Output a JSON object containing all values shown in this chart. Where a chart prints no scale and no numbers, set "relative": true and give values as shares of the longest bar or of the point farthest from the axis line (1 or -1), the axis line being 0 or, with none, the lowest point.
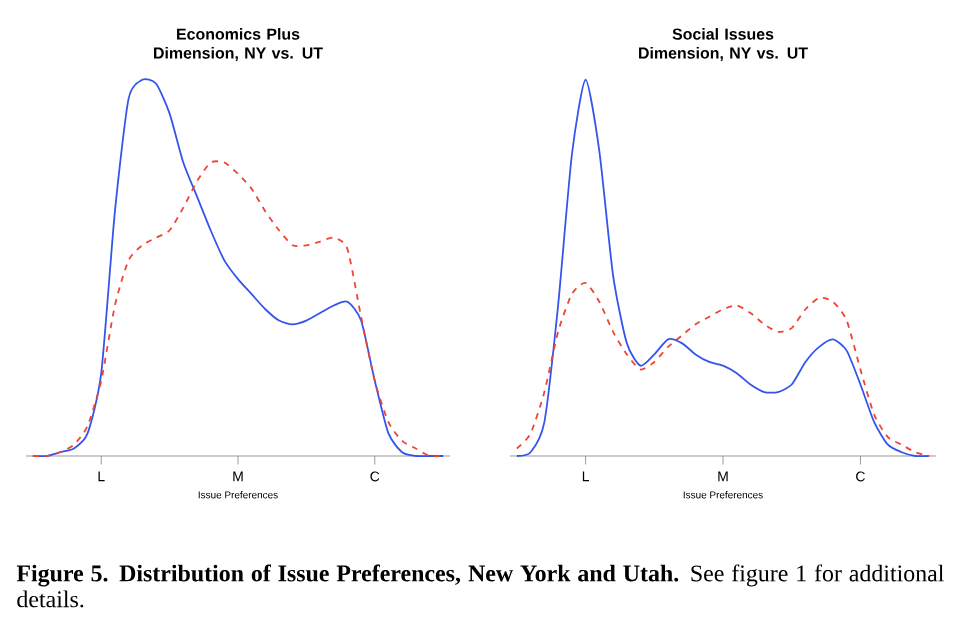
{
  "chart_data": [
    {
      "type": "line",
      "title": "Economics Plus Dimension, NY vs. UT",
      "xlabel": "Issue Preferences",
      "relative": true,
      "categories": [
        null,
        null,
        null,
        null,
        null,
        "L",
        null,
        null,
        null,
        null,
        null,
        null,
        null,
        null,
        null,
        "M",
        null,
        null,
        null,
        null,
        null,
        null,
        null,
        null,
        null,
        "C",
        null,
        null,
        null,
        null,
        null
      ],
      "series": [
        {
          "color": "#3355ee",
          "line_style": "solid",
          "values": [
            0,
            0,
            0.01,
            0.02,
            0.06,
            0.22,
            0.65,
            0.95,
            1.0,
            0.99,
            0.91,
            0.78,
            0.69,
            0.6,
            0.52,
            0.47,
            0.43,
            0.39,
            0.36,
            0.35,
            0.36,
            0.38,
            0.4,
            0.41,
            0.36,
            0.2,
            0.06,
            0.01,
            0,
            0,
            0
          ]
        },
        {
          "color": "#ee4433",
          "line_style": "dashed",
          "values": [
            0,
            0,
            0.01,
            0.03,
            0.08,
            0.2,
            0.4,
            0.52,
            0.56,
            0.58,
            0.6,
            0.66,
            0.73,
            0.78,
            0.78,
            0.75,
            0.71,
            0.65,
            0.6,
            0.56,
            0.56,
            0.57,
            0.58,
            0.55,
            0.37,
            0.2,
            0.09,
            0.04,
            0.02,
            0,
            0
          ]
        }
      ],
      "annotations": [
        "**Figure 5. Distribution of Issue Preferences, New York and Utah.** See figure 1 for additional details."
      ]
    },
    {
      "type": "line",
      "title": "Social Issues Dimension, NY vs. UT",
      "xlabel": "Issue Preferences",
      "relative": true,
      "categories": [
        null,
        null,
        null,
        null,
        null,
        "L",
        null,
        null,
        null,
        null,
        null,
        null,
        null,
        null,
        null,
        "M",
        null,
        null,
        null,
        null,
        null,
        null,
        null,
        null,
        null,
        "C",
        null,
        null,
        null,
        null,
        null
      ],
      "series": [
        {
          "color": "#3355ee",
          "line_style": "solid",
          "values": [
            0,
            0.01,
            0.09,
            0.4,
            0.8,
            1.0,
            0.81,
            0.48,
            0.3,
            0.24,
            0.27,
            0.31,
            0.3,
            0.27,
            0.25,
            0.24,
            0.22,
            0.19,
            0.17,
            0.17,
            0.19,
            0.25,
            0.29,
            0.31,
            0.28,
            0.19,
            0.09,
            0.03,
            0.01,
            0,
            0
          ]
        },
        {
          "color": "#ee4433",
          "line_style": "dashed",
          "values": [
            0.02,
            0.06,
            0.17,
            0.33,
            0.43,
            0.46,
            0.41,
            0.33,
            0.27,
            0.23,
            0.25,
            0.29,
            0.32,
            0.35,
            0.37,
            0.39,
            0.4,
            0.38,
            0.35,
            0.33,
            0.34,
            0.39,
            0.42,
            0.41,
            0.36,
            0.23,
            0.11,
            0.05,
            0.03,
            0.01,
            0
          ]
        }
      ]
    }
  ]
}
